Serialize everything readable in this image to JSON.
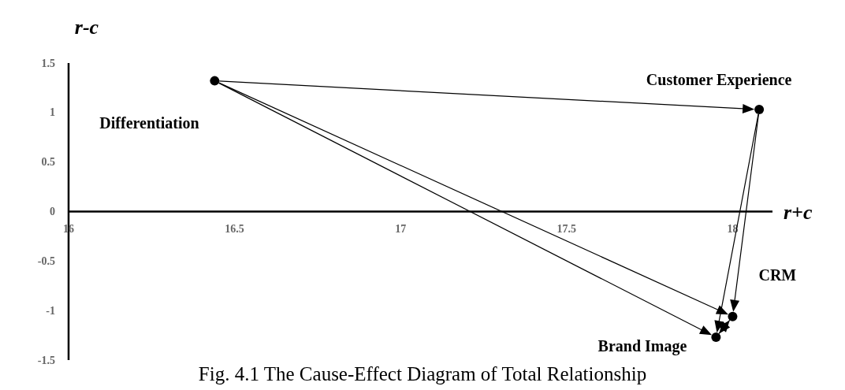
{
  "chart_data": {
    "type": "scatter",
    "title": "Fig. 4.1 The Cause-Effect Diagram of Total Relationship",
    "xlabel": "r+c",
    "ylabel": "r-c",
    "xlim": [
      16,
      18.12
    ],
    "ylim": [
      -1.5,
      1.5
    ],
    "xticks": [
      16,
      16.5,
      17,
      17.5,
      18
    ],
    "yticks": [
      -1.5,
      -1,
      -0.5,
      0,
      0.5,
      1,
      1.5
    ],
    "marker": "circle",
    "grid": false,
    "series": [
      {
        "name": "Differentiation",
        "color": "#000000",
        "x": [
          16.44
        ],
        "values": [
          1.32
        ]
      },
      {
        "name": "Customer Experience",
        "color": "#000000",
        "x": [
          18.08
        ],
        "values": [
          1.03
        ]
      },
      {
        "name": "CRM",
        "color": "#000000",
        "x": [
          18.0
        ],
        "values": [
          -1.06
        ]
      },
      {
        "name": "Brand Image",
        "color": "#000000",
        "x": [
          17.95
        ],
        "values": [
          -1.27
        ]
      }
    ]
  }
}
